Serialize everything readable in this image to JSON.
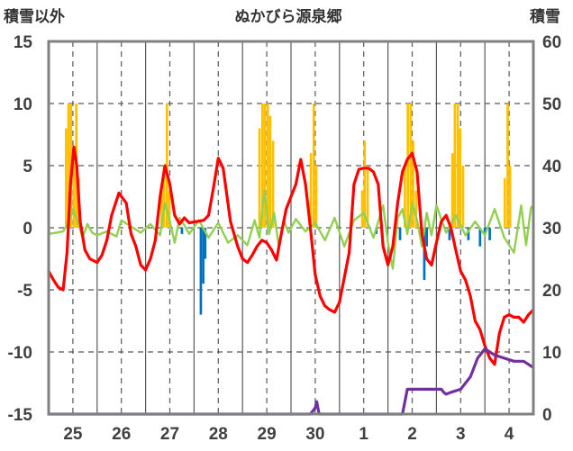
{
  "chart_data": {
    "type": "line+bar",
    "title": "ぬかびら源泉郷",
    "ylabel_left": "積雪以外",
    "ylabel_right": "積雪",
    "ylim_left": [
      -15,
      15
    ],
    "ylim_right": [
      0,
      60
    ],
    "left_ticks": [
      "15",
      "10",
      "5",
      "0",
      "-5",
      "-10",
      "-15"
    ],
    "right_ticks": [
      "60",
      "50",
      "40",
      "30",
      "20",
      "10",
      "0"
    ],
    "x_range": [
      0,
      10
    ],
    "x_labels": [
      "25",
      "26",
      "27",
      "28",
      "29",
      "30",
      "1",
      "2",
      "3",
      "4"
    ],
    "x_label_positions": [
      0.5,
      1.5,
      2.5,
      3.5,
      4.5,
      5.5,
      6.5,
      7.5,
      8.5,
      9.5
    ],
    "day_boundaries": [
      1,
      2,
      3,
      4,
      5,
      6,
      7,
      8,
      9
    ],
    "grid": true,
    "colors": {
      "temperature": "#ff0000",
      "wind": "#92d050",
      "precip": "#ffc000",
      "pressure_change": "#0070c0",
      "snow_depth": "#7030a0",
      "axis": "#808080",
      "grid": "#595959"
    },
    "series": [
      {
        "name": "precipitation",
        "type": "bar",
        "axis": "left",
        "color": "#ffc000",
        "points": [
          [
            0.36,
            8
          ],
          [
            0.41,
            10
          ],
          [
            0.46,
            10
          ],
          [
            0.52,
            6
          ],
          [
            0.57,
            10
          ],
          [
            0.62,
            4
          ],
          [
            2.33,
            3
          ],
          [
            2.38,
            5
          ],
          [
            2.44,
            10
          ],
          [
            2.49,
            3
          ],
          [
            4.35,
            8
          ],
          [
            4.41,
            10
          ],
          [
            4.46,
            10
          ],
          [
            4.52,
            10
          ],
          [
            4.57,
            9
          ],
          [
            4.63,
            7
          ],
          [
            5.41,
            6
          ],
          [
            5.47,
            10
          ],
          [
            5.52,
            5
          ],
          [
            6.47,
            3
          ],
          [
            6.52,
            7
          ],
          [
            6.58,
            5
          ],
          [
            7.35,
            5
          ],
          [
            7.41,
            10
          ],
          [
            7.47,
            10
          ],
          [
            7.52,
            7
          ],
          [
            7.58,
            3
          ],
          [
            8.33,
            6
          ],
          [
            8.38,
            10
          ],
          [
            8.44,
            10
          ],
          [
            8.49,
            8
          ],
          [
            8.55,
            5
          ],
          [
            9.41,
            4
          ],
          [
            9.47,
            10
          ],
          [
            9.52,
            5
          ]
        ]
      },
      {
        "name": "pressure_change",
        "type": "bar",
        "axis": "left",
        "color": "#0070c0",
        "points": [
          [
            2.75,
            -0.5
          ],
          [
            3.14,
            -7
          ],
          [
            3.19,
            -4.5
          ],
          [
            3.23,
            -2.5
          ],
          [
            6.76,
            -0.5
          ],
          [
            7.25,
            -1
          ],
          [
            7.75,
            -4.2
          ],
          [
            7.8,
            -1.5
          ],
          [
            8.27,
            -1
          ],
          [
            8.66,
            -1
          ],
          [
            8.9,
            -1.5
          ],
          [
            9.0,
            -0.5
          ],
          [
            9.1,
            -1
          ]
        ]
      },
      {
        "name": "wind",
        "type": "line",
        "axis": "left",
        "color": "#92d050",
        "x": [
          0,
          0.3,
          0.42,
          0.5,
          0.6,
          0.7,
          0.8,
          0.9,
          1.0,
          1.2,
          1.4,
          1.5,
          1.7,
          1.9,
          2.1,
          2.3,
          2.4,
          2.5,
          2.6,
          2.7,
          2.8,
          2.9,
          3.1,
          3.3,
          3.5,
          3.7,
          3.9,
          4.1,
          4.25,
          4.35,
          4.45,
          4.55,
          4.65,
          4.75,
          4.85,
          4.95,
          5.1,
          5.3,
          5.5,
          5.7,
          5.9,
          6.1,
          6.3,
          6.5,
          6.7,
          6.9,
          7.0,
          7.1,
          7.2,
          7.3,
          7.4,
          7.5,
          7.6,
          7.7,
          7.8,
          7.9,
          8.0,
          8.2,
          8.4,
          8.6,
          8.8,
          9.0,
          9.2,
          9.4,
          9.6,
          9.75,
          9.85,
          9.95,
          10.0
        ],
        "y": [
          -0.5,
          -0.3,
          0.5,
          1.5,
          0.5,
          -0.8,
          0.3,
          -0.4,
          -0.6,
          -0.3,
          -0.7,
          0.6,
          0.1,
          -0.4,
          0.3,
          -0.6,
          2.0,
          0.5,
          -1.2,
          0.8,
          0.2,
          -0.5,
          0.6,
          -0.8,
          0.4,
          -1.2,
          -0.6,
          -1.4,
          0.6,
          -0.8,
          3.0,
          -0.5,
          1.2,
          -1.5,
          0.6,
          -0.4,
          0.7,
          -0.3,
          0.4,
          -1.0,
          0.8,
          -1.5,
          0.6,
          1.2,
          -0.8,
          1.8,
          -1.2,
          -3.3,
          0.8,
          1.5,
          -0.5,
          2.0,
          0.6,
          -1.5,
          1.2,
          -0.6,
          1.8,
          -0.4,
          1.0,
          -0.6,
          0.5,
          -0.6,
          1.5,
          -0.8,
          -2.0,
          1.8,
          -1.4,
          1.6,
          1.8
        ]
      },
      {
        "name": "temperature",
        "type": "line",
        "axis": "left",
        "color": "#ff0000",
        "x": [
          0,
          0.1,
          0.2,
          0.3,
          0.38,
          0.45,
          0.52,
          0.58,
          0.65,
          0.75,
          0.85,
          1.0,
          1.1,
          1.2,
          1.3,
          1.45,
          1.6,
          1.7,
          1.8,
          1.9,
          2.0,
          2.1,
          2.2,
          2.3,
          2.4,
          2.5,
          2.6,
          2.7,
          2.8,
          2.9,
          3.05,
          3.2,
          3.3,
          3.4,
          3.5,
          3.6,
          3.75,
          3.9,
          4.0,
          4.1,
          4.2,
          4.3,
          4.4,
          4.5,
          4.6,
          4.7,
          4.8,
          4.9,
          5.0,
          5.1,
          5.2,
          5.3,
          5.4,
          5.5,
          5.6,
          5.7,
          5.8,
          5.9,
          6.0,
          6.1,
          6.2,
          6.3,
          6.4,
          6.5,
          6.6,
          6.7,
          6.8,
          6.9,
          7.0,
          7.1,
          7.2,
          7.3,
          7.4,
          7.5,
          7.6,
          7.7,
          7.8,
          7.9,
          8.0,
          8.1,
          8.2,
          8.3,
          8.4,
          8.5,
          8.6,
          8.7,
          8.8,
          8.9,
          9.0,
          9.1,
          9.2,
          9.3,
          9.4,
          9.5,
          9.6,
          9.7,
          9.8,
          9.9,
          10.0
        ],
        "y": [
          -3.5,
          -4.2,
          -4.8,
          -5.0,
          -2.0,
          3.5,
          6.5,
          5.0,
          0.5,
          -1.8,
          -2.5,
          -2.8,
          -2.2,
          -1.0,
          1.0,
          2.8,
          2.0,
          -0.5,
          -1.5,
          -3.0,
          -3.4,
          -2.5,
          -1.0,
          2.5,
          5.0,
          3.5,
          1.0,
          0.3,
          0.8,
          0.4,
          0.5,
          0.6,
          1.0,
          3.2,
          5.6,
          4.8,
          0.5,
          -1.5,
          -2.5,
          -2.8,
          -2.2,
          -1.5,
          -1.0,
          -1.2,
          -1.8,
          -2.6,
          -0.5,
          1.5,
          2.5,
          3.5,
          5.5,
          3.5,
          0.0,
          -3.8,
          -5.5,
          -6.3,
          -6.6,
          -6.8,
          -6.0,
          -4.0,
          -2.0,
          3.5,
          4.7,
          4.8,
          4.8,
          4.5,
          3.5,
          -1.5,
          -3.0,
          -1.5,
          2.0,
          4.5,
          5.5,
          6.0,
          4.5,
          -0.5,
          -2.5,
          -3.0,
          -1.2,
          0.5,
          1.0,
          0.0,
          -1.8,
          -3.5,
          -4.2,
          -5.5,
          -7.5,
          -8.2,
          -9.5,
          -10.5,
          -11.0,
          -8.5,
          -7.2,
          -7.0,
          -7.2,
          -7.2,
          -7.6,
          -7.0,
          -6.6
        ]
      },
      {
        "name": "snow_depth",
        "type": "line",
        "axis": "right",
        "color": "#7030a0",
        "x": [
          0,
          5.4,
          5.5,
          5.53,
          5.58,
          5.63,
          5.7,
          7.3,
          7.4,
          7.42,
          8.0,
          8.05,
          8.1,
          8.15,
          8.2,
          8.3,
          8.5,
          8.6,
          8.7,
          8.75,
          8.85,
          9.0,
          9.1,
          9.2,
          9.4,
          9.6,
          9.8,
          10.0
        ],
        "y": [
          0,
          0,
          1,
          2,
          0,
          0,
          0,
          0,
          4,
          4,
          4,
          4,
          4,
          3.5,
          3.2,
          3.5,
          4,
          5,
          6,
          7,
          9,
          10.5,
          10,
          9.5,
          9,
          8.5,
          8.5,
          7.5
        ]
      }
    ]
  }
}
